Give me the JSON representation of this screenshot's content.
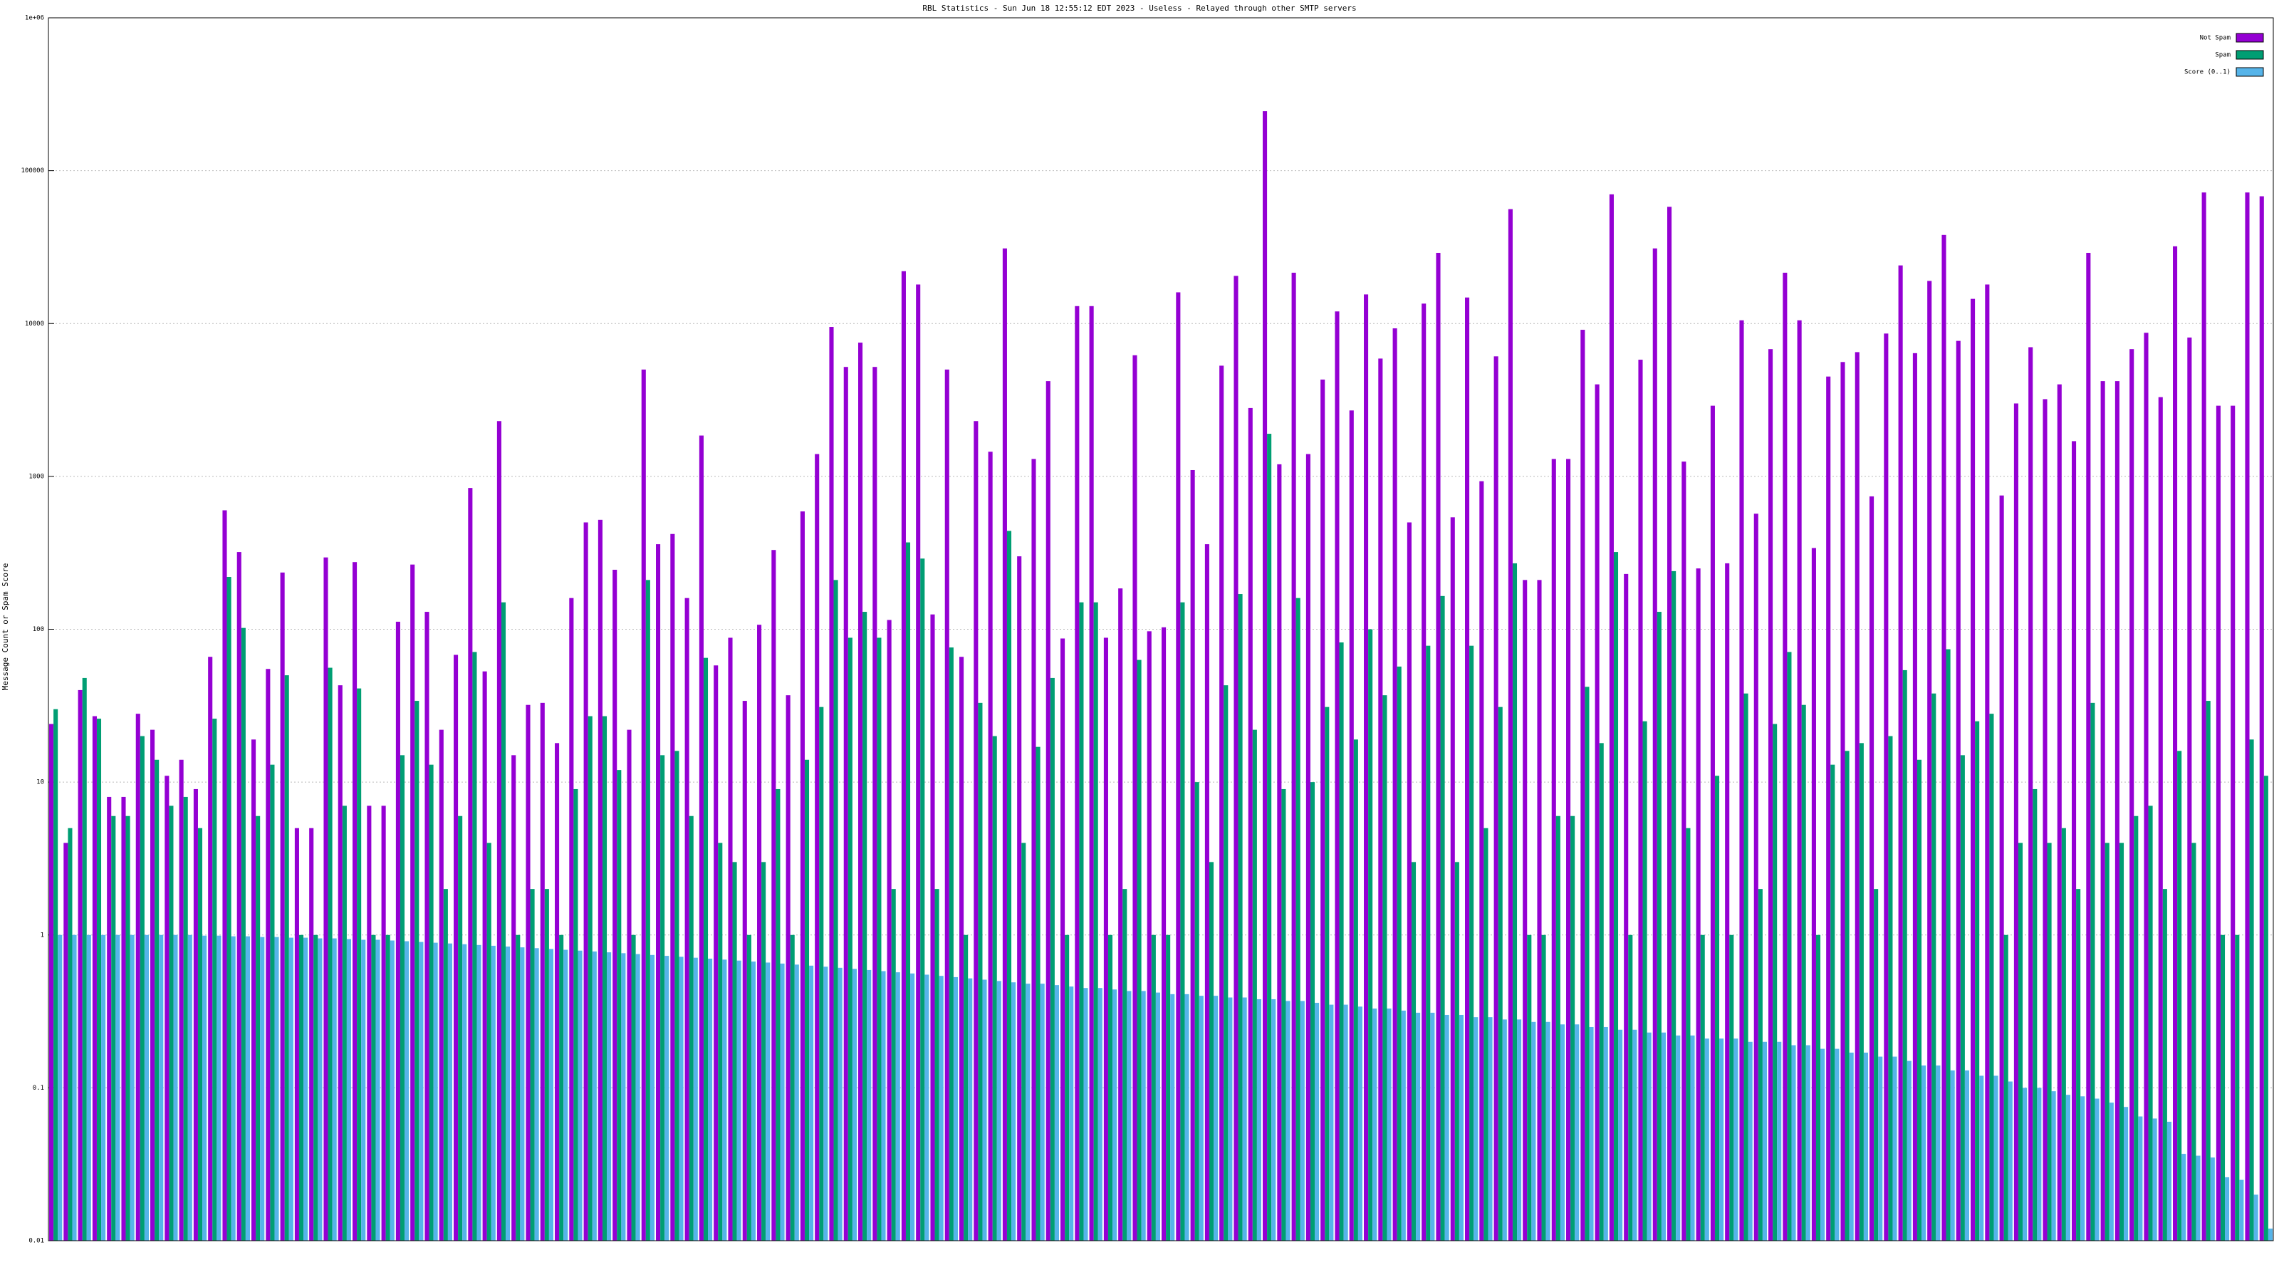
{
  "chart_data": {
    "type": "bar",
    "title": "RBL Statistics - Sun Jun 18 12:55:12 EDT 2023 - Useless - Relayed through other SMTP servers",
    "y_label": "Message Count or Spam Score",
    "log_y": true,
    "grid": true,
    "legend": "top-right",
    "ylim": [
      0.01,
      1000000
    ],
    "yticks": [
      0.01,
      0.1,
      1,
      10,
      100,
      1000,
      10000,
      100000,
      {
        "value": 1000000,
        "label": "1e+06"
      }
    ],
    "categories": [
      null,
      null,
      null,
      null,
      null,
      null,
      null,
      null,
      null,
      null,
      null,
      null,
      null,
      null,
      null,
      null,
      null,
      null,
      null,
      null,
      null,
      null,
      null,
      null,
      null,
      null,
      null,
      null,
      null,
      null,
      null,
      null,
      null,
      null,
      null,
      null,
      null,
      null,
      null,
      null,
      null,
      null,
      null,
      null,
      null,
      null,
      null,
      null,
      null,
      null,
      null,
      null,
      null,
      null,
      null,
      null,
      null,
      null,
      null,
      null,
      null,
      null,
      null,
      null,
      null,
      null,
      null,
      null,
      null,
      null,
      null,
      null,
      null,
      null,
      null,
      null,
      null,
      null,
      null,
      null,
      null,
      null,
      null,
      null,
      null,
      null,
      null,
      null,
      null,
      null,
      null,
      null,
      null,
      null,
      null,
      null,
      null,
      null,
      null,
      null,
      null,
      null,
      null,
      null,
      null,
      null,
      null,
      null,
      null,
      null,
      null,
      null,
      null,
      null,
      null,
      null,
      null,
      null,
      null,
      null,
      null,
      null,
      null,
      null,
      null,
      null,
      null,
      null,
      null,
      null,
      null,
      null,
      null,
      null,
      null,
      null,
      null,
      null,
      null,
      null,
      null,
      null,
      null,
      null,
      null,
      null,
      null,
      null,
      null,
      null,
      null,
      null,
      null,
      null
    ],
    "series": [
      {
        "name": "Not Spam",
        "color": "#9400d3",
        "values": [
          24,
          4,
          40,
          27,
          8,
          8,
          28,
          22,
          11,
          14,
          9,
          66,
          600,
          320,
          19,
          55,
          235,
          5,
          5,
          295,
          43,
          275,
          7,
          7,
          112,
          265,
          130,
          22,
          68,
          840,
          53,
          2300,
          15,
          32,
          33,
          18,
          160,
          500,
          520,
          245,
          22,
          5000,
          360,
          420,
          160,
          1850,
          58,
          88,
          34,
          107,
          330,
          37,
          590,
          1400,
          9500,
          5200,
          7500,
          5200,
          115,
          22000,
          18000,
          125,
          5000,
          66,
          2300,
          1450,
          31000,
          300,
          1300,
          4200,
          87,
          13000,
          13000,
          88,
          185,
          6200,
          97,
          103,
          16000,
          1100,
          360,
          5300,
          20500,
          2800,
          245000,
          1200,
          21500,
          1400,
          4300,
          12000,
          2700,
          15500,
          5900,
          9300,
          500,
          13500,
          29000,
          540,
          14800,
          930,
          6100,
          56000,
          210,
          210,
          1300,
          1300,
          9100,
          4000,
          70000,
          230,
          5800,
          31000,
          58000,
          1250,
          250,
          2900,
          270,
          10500,
          570,
          6800,
          21500,
          10500,
          340,
          4500,
          5600,
          6500,
          740,
          8600,
          24000,
          6400,
          19000,
          38000,
          7700,
          14500,
          18000,
          750,
          3000,
          7000,
          3200,
          4000,
          1700,
          29000,
          4200,
          4200,
          6800,
          8700,
          3300,
          32000,
          8100,
          72000,
          2900,
          2900,
          72000,
          68000
        ]
      },
      {
        "name": "Spam",
        "color": "#009e73",
        "values": [
          30,
          5,
          48,
          26,
          6,
          6,
          20,
          14,
          7,
          8,
          5,
          26,
          220,
          102,
          6,
          13,
          50,
          1,
          1,
          56,
          7,
          41,
          1,
          1,
          15,
          34,
          13,
          2,
          6,
          71,
          4,
          150,
          1,
          2,
          2,
          1,
          9,
          27,
          27,
          12,
          1,
          210,
          15,
          16,
          6,
          65,
          4,
          3,
          1,
          3,
          9,
          1,
          14,
          31,
          210,
          88,
          130,
          88,
          2,
          370,
          290,
          2,
          76,
          1,
          33,
          20,
          440,
          4,
          17,
          48,
          1,
          150,
          150,
          1,
          2,
          63,
          1,
          1,
          150,
          10,
          3,
          43,
          170,
          22,
          1900,
          9,
          160,
          10,
          31,
          82,
          19,
          100,
          37,
          57,
          3,
          78,
          165,
          3,
          78,
          5,
          31,
          270,
          1,
          1,
          6,
          6,
          42,
          18,
          320,
          1,
          25,
          130,
          240,
          5,
          1,
          11,
          1,
          38,
          2,
          24,
          71,
          32,
          1,
          13,
          16,
          18,
          2,
          20,
          54,
          14,
          38,
          74,
          15,
          25,
          28,
          1,
          4,
          9,
          4,
          5,
          2,
          33,
          4,
          4,
          6,
          7,
          2,
          16,
          4,
          34,
          1,
          1,
          19,
          11
        ]
      },
      {
        "name": "Score (0..1)",
        "color": "#56b4e9",
        "values": [
          1,
          1,
          1,
          1,
          1,
          1,
          1,
          1,
          1,
          1,
          0.99,
          0.99,
          0.98,
          0.98,
          0.97,
          0.97,
          0.96,
          0.96,
          0.95,
          0.95,
          0.94,
          0.93,
          0.93,
          0.92,
          0.91,
          0.9,
          0.89,
          0.88,
          0.87,
          0.86,
          0.85,
          0.84,
          0.83,
          0.82,
          0.81,
          0.8,
          0.79,
          0.78,
          0.77,
          0.76,
          0.75,
          0.74,
          0.73,
          0.72,
          0.71,
          0.7,
          0.69,
          0.68,
          0.67,
          0.66,
          0.65,
          0.64,
          0.63,
          0.62,
          0.61,
          0.6,
          0.59,
          0.58,
          0.57,
          0.56,
          0.55,
          0.54,
          0.53,
          0.52,
          0.51,
          0.5,
          0.49,
          0.48,
          0.48,
          0.47,
          0.46,
          0.45,
          0.45,
          0.44,
          0.43,
          0.43,
          0.42,
          0.41,
          0.41,
          0.4,
          0.4,
          0.39,
          0.39,
          0.38,
          0.38,
          0.37,
          0.37,
          0.36,
          0.35,
          0.35,
          0.34,
          0.33,
          0.33,
          0.32,
          0.31,
          0.31,
          0.3,
          0.3,
          0.29,
          0.29,
          0.28,
          0.28,
          0.27,
          0.27,
          0.26,
          0.26,
          0.25,
          0.25,
          0.24,
          0.24,
          0.23,
          0.23,
          0.22,
          0.22,
          0.21,
          0.21,
          0.21,
          0.2,
          0.2,
          0.2,
          0.19,
          0.19,
          0.18,
          0.18,
          0.17,
          0.17,
          0.16,
          0.16,
          0.15,
          0.14,
          0.14,
          0.13,
          0.13,
          0.12,
          0.12,
          0.11,
          0.1,
          0.1,
          0.095,
          0.09,
          0.088,
          0.085,
          0.08,
          0.075,
          0.065,
          0.063,
          0.06,
          0.037,
          0.036,
          0.035,
          0.026,
          0.025,
          0.02,
          0.012
        ]
      }
    ]
  }
}
